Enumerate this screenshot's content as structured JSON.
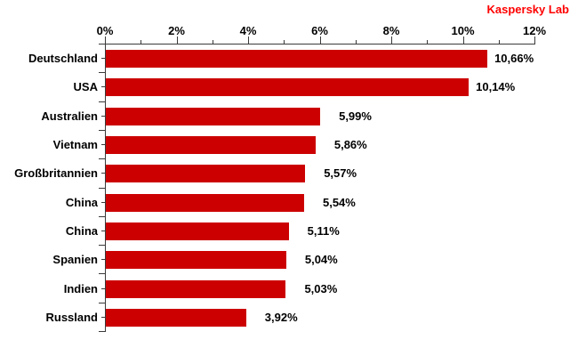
{
  "brand": "Kaspersky Lab",
  "chart_data": {
    "type": "bar",
    "orientation": "horizontal",
    "title": "",
    "categories": [
      "Deutschland",
      "USA",
      "Australien",
      "Vietnam",
      "Großbritannien",
      "China",
      "China",
      "Spanien",
      "Indien",
      "Russland"
    ],
    "values": [
      10.66,
      10.14,
      5.99,
      5.86,
      5.57,
      5.54,
      5.11,
      5.04,
      5.03,
      3.92
    ],
    "value_labels": [
      "10,66%",
      "10,14%",
      "5,99%",
      "5,86%",
      "5,57%",
      "5,54%",
      "5,11%",
      "5,04%",
      "5,03%",
      "3,92%"
    ],
    "x_axis": {
      "position": "top",
      "range": [
        0,
        12
      ],
      "major_tick_step": 2,
      "minor_tick_step": 1,
      "tick_labels": [
        "0%",
        "2%",
        "4%",
        "6%",
        "8%",
        "10%",
        "12%"
      ]
    },
    "value_label_position": "outside-end",
    "legend": null,
    "grid": false,
    "colors": {
      "bar": "#CC0000",
      "brand_text": "#FF0000",
      "axis": "#3A3A3A",
      "text": "#000000",
      "background": "#FFFFFF"
    }
  }
}
